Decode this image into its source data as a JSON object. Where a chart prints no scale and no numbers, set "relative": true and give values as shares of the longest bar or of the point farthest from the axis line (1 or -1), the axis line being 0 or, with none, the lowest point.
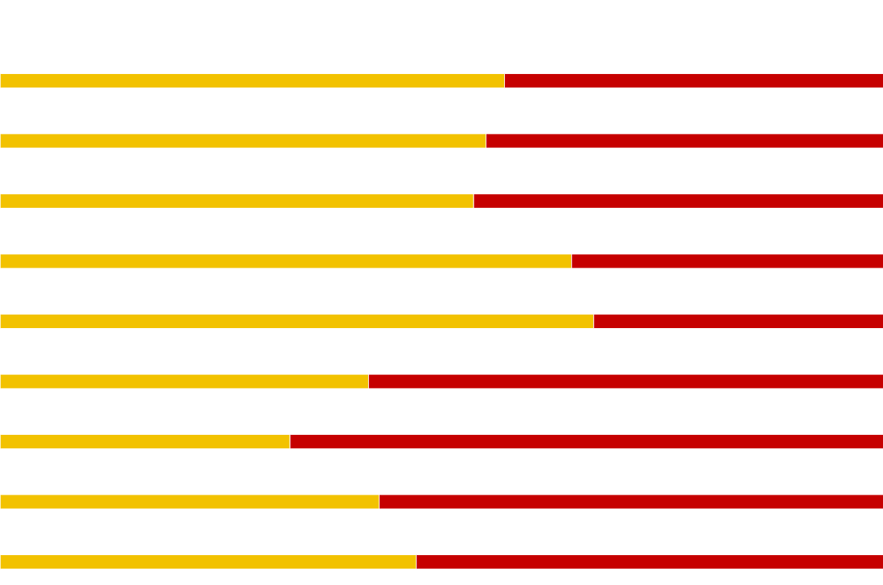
{
  "chart_data": {
    "type": "bar",
    "orientation": "horizontal",
    "stacked": true,
    "relative": true,
    "categories": [
      null,
      null,
      null,
      null,
      null,
      null,
      null,
      null,
      null
    ],
    "series": [
      {
        "color": "#f2c200",
        "values": [
          0.571,
          0.55,
          0.536,
          0.647,
          0.672,
          0.417,
          0.328,
          0.429,
          0.471
        ]
      },
      {
        "color": "#c60000",
        "values": [
          0.429,
          0.45,
          0.464,
          0.353,
          0.328,
          0.583,
          0.672,
          0.571,
          0.529
        ]
      }
    ]
  }
}
